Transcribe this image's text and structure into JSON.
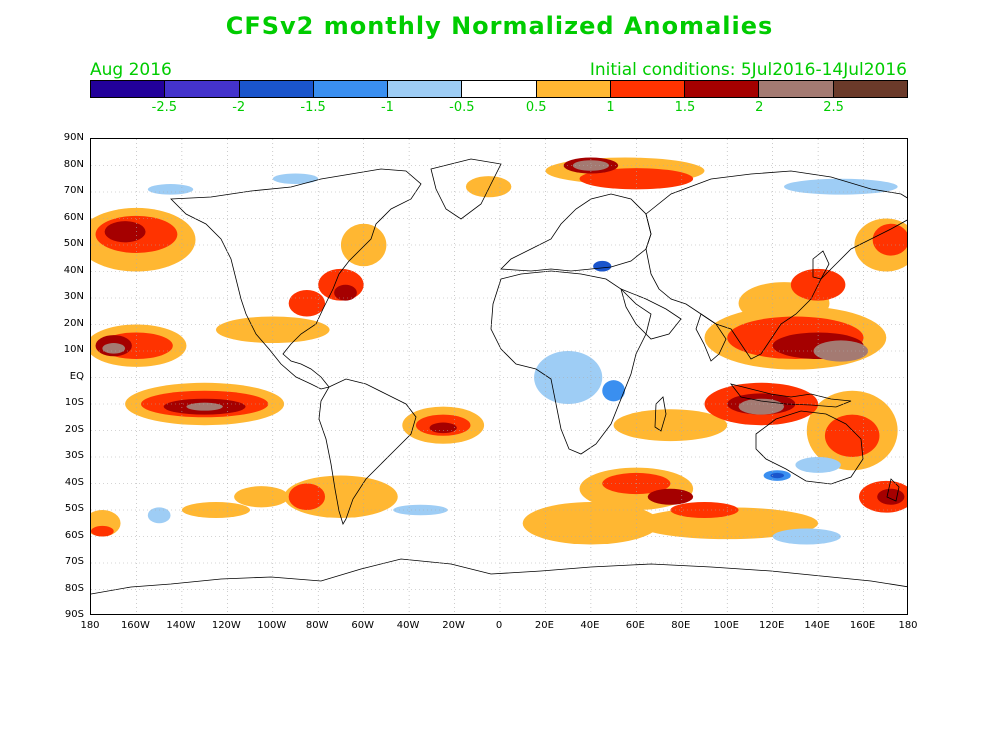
{
  "header": {
    "title": "CFSv2 monthly Normalized Anomalies",
    "month": "Aug 2016",
    "init": "Initial conditions: 5Jul2016-14Jul2016"
  },
  "colorbar": {
    "colors": [
      "#22009a",
      "#4433cc",
      "#1a55cc",
      "#3a8ff0",
      "#9ecdf5",
      "#ffffff",
      "#ffb732",
      "#ff3300",
      "#a50000",
      "#a47a72",
      "#6b3a2a"
    ],
    "labels": [
      "-2.5",
      "-2",
      "-1.5",
      "-1",
      "-0.5",
      "0.5",
      "1",
      "1.5",
      "2",
      "2.5"
    ],
    "label_color": "#00cc00"
  },
  "axes": {
    "lat_labels": [
      "90N",
      "80N",
      "70N",
      "60N",
      "50N",
      "40N",
      "30N",
      "20N",
      "10N",
      "EQ",
      "10S",
      "20S",
      "30S",
      "40S",
      "50S",
      "60S",
      "70S",
      "80S",
      "90S"
    ],
    "lon_labels": [
      "180",
      "160W",
      "140W",
      "120W",
      "100W",
      "80W",
      "60W",
      "40W",
      "20W",
      "0",
      "20E",
      "40E",
      "60E",
      "80E",
      "100E",
      "120E",
      "140E",
      "160E",
      "180"
    ]
  },
  "map_data": {
    "projection": "equirectangular",
    "lon_range": [
      -180,
      180
    ],
    "lat_range": [
      -90,
      90
    ],
    "anomaly_blobs": [
      {
        "lon": -160,
        "lat": 12,
        "rx": 22,
        "ry": 8,
        "level": 1
      },
      {
        "lon": -160,
        "lat": 12,
        "rx": 16,
        "ry": 5,
        "level": 2
      },
      {
        "lon": -170,
        "lat": 12,
        "rx": 8,
        "ry": 4,
        "level": 3
      },
      {
        "lon": -170,
        "lat": 11,
        "rx": 5,
        "ry": 2,
        "level": 4
      },
      {
        "lon": -160,
        "lat": 52,
        "rx": 26,
        "ry": 12,
        "level": 1
      },
      {
        "lon": -160,
        "lat": 54,
        "rx": 18,
        "ry": 7,
        "level": 2
      },
      {
        "lon": -165,
        "lat": 55,
        "rx": 9,
        "ry": 4,
        "level": 3
      },
      {
        "lon": -130,
        "lat": -10,
        "rx": 35,
        "ry": 8,
        "level": 1
      },
      {
        "lon": -130,
        "lat": -10,
        "rx": 28,
        "ry": 5,
        "level": 2
      },
      {
        "lon": -130,
        "lat": -11,
        "rx": 18,
        "ry": 3,
        "level": 3
      },
      {
        "lon": -130,
        "lat": -11,
        "rx": 8,
        "ry": 1.5,
        "level": 4
      },
      {
        "lon": -100,
        "lat": 18,
        "rx": 25,
        "ry": 5,
        "level": 1
      },
      {
        "lon": -85,
        "lat": 28,
        "rx": 8,
        "ry": 5,
        "level": 2
      },
      {
        "lon": -70,
        "lat": 35,
        "rx": 10,
        "ry": 6,
        "level": 2
      },
      {
        "lon": -68,
        "lat": 32,
        "rx": 5,
        "ry": 3,
        "level": 3
      },
      {
        "lon": -60,
        "lat": 50,
        "rx": 10,
        "ry": 8,
        "level": 1
      },
      {
        "lon": -25,
        "lat": -18,
        "rx": 18,
        "ry": 7,
        "level": 1
      },
      {
        "lon": -25,
        "lat": -18,
        "rx": 12,
        "ry": 4,
        "level": 2
      },
      {
        "lon": -25,
        "lat": -19,
        "rx": 6,
        "ry": 2,
        "level": 3
      },
      {
        "lon": -70,
        "lat": -45,
        "rx": 25,
        "ry": 8,
        "level": 1
      },
      {
        "lon": -85,
        "lat": -45,
        "rx": 8,
        "ry": 5,
        "level": 2
      },
      {
        "lon": -105,
        "lat": -45,
        "rx": 12,
        "ry": 4,
        "level": 1
      },
      {
        "lon": -125,
        "lat": -50,
        "rx": 15,
        "ry": 3,
        "level": 1
      },
      {
        "lon": -175,
        "lat": -55,
        "rx": 8,
        "ry": 5,
        "level": 1
      },
      {
        "lon": -175,
        "lat": -58,
        "rx": 5,
        "ry": 2,
        "level": 2
      },
      {
        "lon": 40,
        "lat": -55,
        "rx": 30,
        "ry": 8,
        "level": 1
      },
      {
        "lon": 60,
        "lat": -42,
        "rx": 25,
        "ry": 8,
        "level": 1
      },
      {
        "lon": 60,
        "lat": -40,
        "rx": 15,
        "ry": 4,
        "level": 2
      },
      {
        "lon": 75,
        "lat": -45,
        "rx": 10,
        "ry": 3,
        "level": 3
      },
      {
        "lon": 100,
        "lat": -55,
        "rx": 40,
        "ry": 6,
        "level": 1
      },
      {
        "lon": 90,
        "lat": -50,
        "rx": 15,
        "ry": 3,
        "level": 2
      },
      {
        "lon": 115,
        "lat": -10,
        "rx": 25,
        "ry": 8,
        "level": 2
      },
      {
        "lon": 115,
        "lat": -10,
        "rx": 15,
        "ry": 4,
        "level": 3
      },
      {
        "lon": 115,
        "lat": -11,
        "rx": 10,
        "ry": 3,
        "level": 4
      },
      {
        "lon": 130,
        "lat": 15,
        "rx": 40,
        "ry": 12,
        "level": 1
      },
      {
        "lon": 130,
        "lat": 15,
        "rx": 30,
        "ry": 8,
        "level": 2
      },
      {
        "lon": 140,
        "lat": 12,
        "rx": 20,
        "ry": 5,
        "level": 3
      },
      {
        "lon": 150,
        "lat": 10,
        "rx": 12,
        "ry": 4,
        "level": 4
      },
      {
        "lon": 125,
        "lat": 28,
        "rx": 20,
        "ry": 8,
        "level": 1
      },
      {
        "lon": 140,
        "lat": 35,
        "rx": 12,
        "ry": 6,
        "level": 2
      },
      {
        "lon": 170,
        "lat": 50,
        "rx": 14,
        "ry": 10,
        "level": 1
      },
      {
        "lon": 172,
        "lat": 52,
        "rx": 8,
        "ry": 6,
        "level": 2
      },
      {
        "lon": 155,
        "lat": -20,
        "rx": 20,
        "ry": 15,
        "level": 1
      },
      {
        "lon": 155,
        "lat": -22,
        "rx": 12,
        "ry": 8,
        "level": 2
      },
      {
        "lon": 170,
        "lat": -45,
        "rx": 12,
        "ry": 6,
        "level": 2
      },
      {
        "lon": 172,
        "lat": -45,
        "rx": 6,
        "ry": 3,
        "level": 3
      },
      {
        "lon": 75,
        "lat": -18,
        "rx": 25,
        "ry": 6,
        "level": 1
      },
      {
        "lon": 55,
        "lat": 78,
        "rx": 35,
        "ry": 5,
        "level": 1
      },
      {
        "lon": 60,
        "lat": 75,
        "rx": 25,
        "ry": 4,
        "level": 2
      },
      {
        "lon": 40,
        "lat": 80,
        "rx": 12,
        "ry": 3,
        "level": 3
      },
      {
        "lon": 40,
        "lat": 80,
        "rx": 8,
        "ry": 2,
        "level": 4
      },
      {
        "lon": -5,
        "lat": 72,
        "rx": 10,
        "ry": 4,
        "level": 1
      },
      {
        "lon": 140,
        "lat": -33,
        "rx": 10,
        "ry": 3,
        "level": -1
      },
      {
        "lon": 122,
        "lat": -37,
        "rx": 6,
        "ry": 2,
        "level": -2
      },
      {
        "lon": 122,
        "lat": -37,
        "rx": 3,
        "ry": 1,
        "level": -3
      },
      {
        "lon": 30,
        "lat": 0,
        "rx": 15,
        "ry": 10,
        "level": -1
      },
      {
        "lon": 50,
        "lat": -5,
        "rx": 5,
        "ry": 4,
        "level": -2
      },
      {
        "lon": 45,
        "lat": 42,
        "rx": 4,
        "ry": 2,
        "level": -3
      },
      {
        "lon": 135,
        "lat": -60,
        "rx": 15,
        "ry": 3,
        "level": -1
      },
      {
        "lon": -35,
        "lat": -50,
        "rx": 12,
        "ry": 2,
        "level": -1
      },
      {
        "lon": -150,
        "lat": -52,
        "rx": 5,
        "ry": 3,
        "level": -1
      },
      {
        "lon": 150,
        "lat": 72,
        "rx": 25,
        "ry": 3,
        "level": -1
      },
      {
        "lon": -90,
        "lat": 75,
        "rx": 10,
        "ry": 2,
        "level": -1
      },
      {
        "lon": -145,
        "lat": 71,
        "rx": 10,
        "ry": 2,
        "level": -1
      }
    ]
  }
}
